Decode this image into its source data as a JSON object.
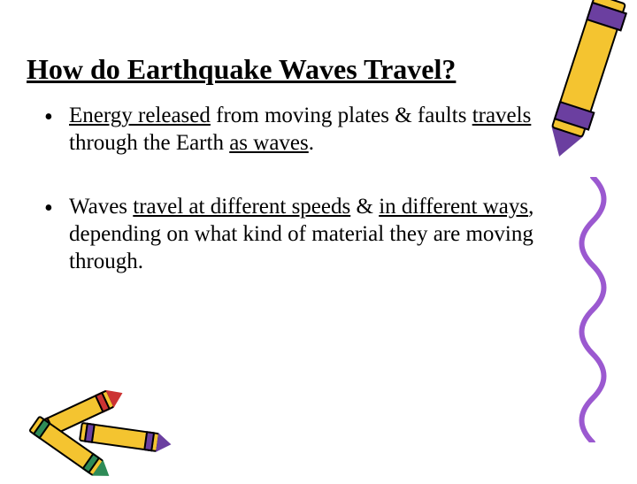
{
  "title": "How do Earthquake Waves Travel?",
  "bullets": [
    {
      "segments": [
        {
          "text": "Energy released",
          "underline": true
        },
        {
          "text": " from moving plates & faults ",
          "underline": false
        },
        {
          "text": "travels",
          "underline": true
        },
        {
          "text": " through the Earth ",
          "underline": false
        },
        {
          "text": "as waves",
          "underline": true
        },
        {
          "text": ".",
          "underline": false
        }
      ]
    },
    {
      "segments": [
        {
          "text": "Waves ",
          "underline": false
        },
        {
          "text": "travel at different speeds",
          "underline": true
        },
        {
          "text": " & ",
          "underline": false
        },
        {
          "text": "in different ways",
          "underline": true
        },
        {
          "text": ", depending on what kind of material they are moving through.",
          "underline": false
        }
      ]
    }
  ],
  "colors": {
    "text": "#000000",
    "background": "#ffffff",
    "crayon_yellow": "#f4c430",
    "crayon_purple": "#6b3fa0",
    "crayon_red": "#cc3333",
    "crayon_green": "#2e8b57",
    "squiggle": "#9b59d0"
  },
  "typography": {
    "title_fontsize": 32,
    "body_fontsize": 25,
    "font_family": "Comic Sans MS"
  }
}
